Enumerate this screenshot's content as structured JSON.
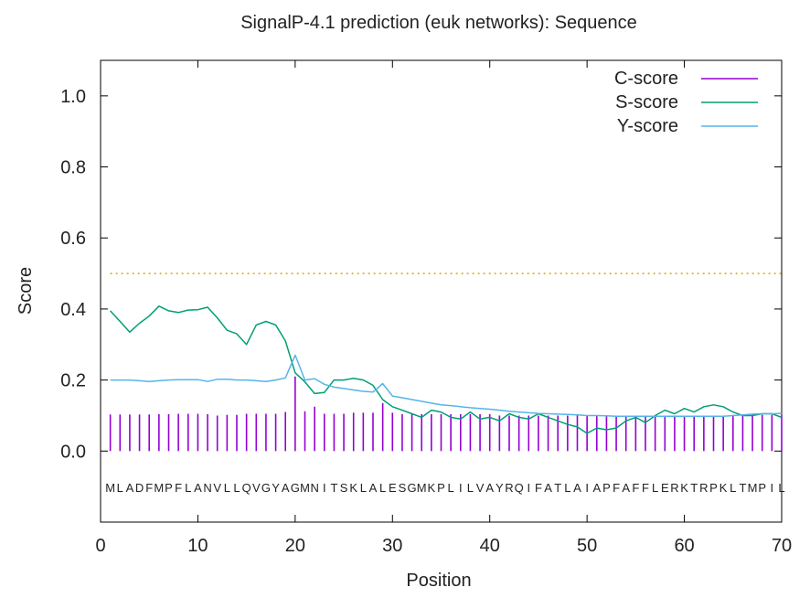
{
  "chart_data": {
    "type": "line",
    "title": "SignalP-4.1 prediction (euk networks): Sequence",
    "xlabel": "Position",
    "ylabel": "Score",
    "xlim": [
      0,
      70
    ],
    "ylim": [
      -0.2,
      1.1
    ],
    "x_ticks": [
      0,
      10,
      20,
      30,
      40,
      50,
      60,
      70
    ],
    "x_tick_labels": [
      "0",
      "10",
      "20",
      "30",
      "40",
      "50",
      "60",
      "70"
    ],
    "y_ticks": [
      0.0,
      0.2,
      0.4,
      0.6,
      0.8,
      1.0
    ],
    "y_tick_labels": [
      "0.0",
      "0.2",
      "0.4",
      "0.6",
      "0.8",
      "1.0"
    ],
    "threshold": 0.5,
    "legend_position": "top-right",
    "sequence": "MLADFMPFLANVLLQVGYAGMNITSKLALESGMKPLILVAYRQIFATLAIAPFAFFLERKTRPKLTMPIL",
    "positions": [
      1,
      2,
      3,
      4,
      5,
      6,
      7,
      8,
      9,
      10,
      11,
      12,
      13,
      14,
      15,
      16,
      17,
      18,
      19,
      20,
      21,
      22,
      23,
      24,
      25,
      26,
      27,
      28,
      29,
      30,
      31,
      32,
      33,
      34,
      35,
      36,
      37,
      38,
      39,
      40,
      41,
      42,
      43,
      44,
      45,
      46,
      47,
      48,
      49,
      50,
      51,
      52,
      53,
      54,
      55,
      56,
      57,
      58,
      59,
      60,
      61,
      62,
      63,
      64,
      65,
      66,
      67,
      68,
      69,
      70
    ],
    "series": [
      {
        "name": "C-score",
        "color": "#9400d3",
        "style": "impulses",
        "values": [
          0.103,
          0.103,
          0.103,
          0.103,
          0.103,
          0.104,
          0.104,
          0.105,
          0.105,
          0.105,
          0.104,
          0.1,
          0.102,
          0.102,
          0.105,
          0.105,
          0.105,
          0.105,
          0.11,
          0.21,
          0.112,
          0.125,
          0.105,
          0.105,
          0.105,
          0.108,
          0.108,
          0.108,
          0.135,
          0.108,
          0.104,
          0.104,
          0.104,
          0.104,
          0.104,
          0.104,
          0.104,
          0.104,
          0.104,
          0.104,
          0.1,
          0.1,
          0.1,
          0.1,
          0.1,
          0.1,
          0.1,
          0.1,
          0.1,
          0.1,
          0.1,
          0.1,
          0.1,
          0.1,
          0.1,
          0.1,
          0.1,
          0.1,
          0.1,
          0.1,
          0.1,
          0.1,
          0.1,
          0.1,
          0.102,
          0.102,
          0.102,
          0.102,
          0.102,
          0.102
        ]
      },
      {
        "name": "S-score",
        "color": "#009e73",
        "style": "line",
        "values": [
          0.395,
          0.365,
          0.335,
          0.36,
          0.38,
          0.408,
          0.395,
          0.39,
          0.397,
          0.398,
          0.405,
          0.375,
          0.34,
          0.33,
          0.3,
          0.355,
          0.365,
          0.355,
          0.31,
          0.22,
          0.195,
          0.162,
          0.165,
          0.2,
          0.2,
          0.205,
          0.2,
          0.185,
          0.145,
          0.125,
          0.115,
          0.105,
          0.095,
          0.115,
          0.11,
          0.095,
          0.09,
          0.11,
          0.09,
          0.095,
          0.085,
          0.105,
          0.095,
          0.09,
          0.105,
          0.095,
          0.085,
          0.075,
          0.068,
          0.05,
          0.065,
          0.06,
          0.065,
          0.085,
          0.095,
          0.08,
          0.1,
          0.115,
          0.105,
          0.12,
          0.11,
          0.125,
          0.13,
          0.125,
          0.11,
          0.1,
          0.1,
          0.105,
          0.105,
          0.095
        ]
      },
      {
        "name": "Y-score",
        "color": "#56b4e9",
        "style": "line",
        "values": [
          0.2,
          0.2,
          0.2,
          0.198,
          0.196,
          0.198,
          0.2,
          0.201,
          0.201,
          0.201,
          0.196,
          0.202,
          0.202,
          0.2,
          0.2,
          0.198,
          0.196,
          0.2,
          0.206,
          0.27,
          0.2,
          0.204,
          0.188,
          0.18,
          0.176,
          0.172,
          0.168,
          0.166,
          0.19,
          0.155,
          0.15,
          0.145,
          0.14,
          0.135,
          0.13,
          0.128,
          0.125,
          0.122,
          0.12,
          0.118,
          0.115,
          0.112,
          0.11,
          0.108,
          0.106,
          0.105,
          0.104,
          0.103,
          0.102,
          0.1,
          0.1,
          0.099,
          0.098,
          0.098,
          0.098,
          0.098,
          0.098,
          0.098,
          0.098,
          0.098,
          0.098,
          0.098,
          0.098,
          0.098,
          0.1,
          0.102,
          0.104,
          0.105,
          0.105,
          0.106
        ]
      }
    ],
    "threshold_color": "#e69f00"
  }
}
